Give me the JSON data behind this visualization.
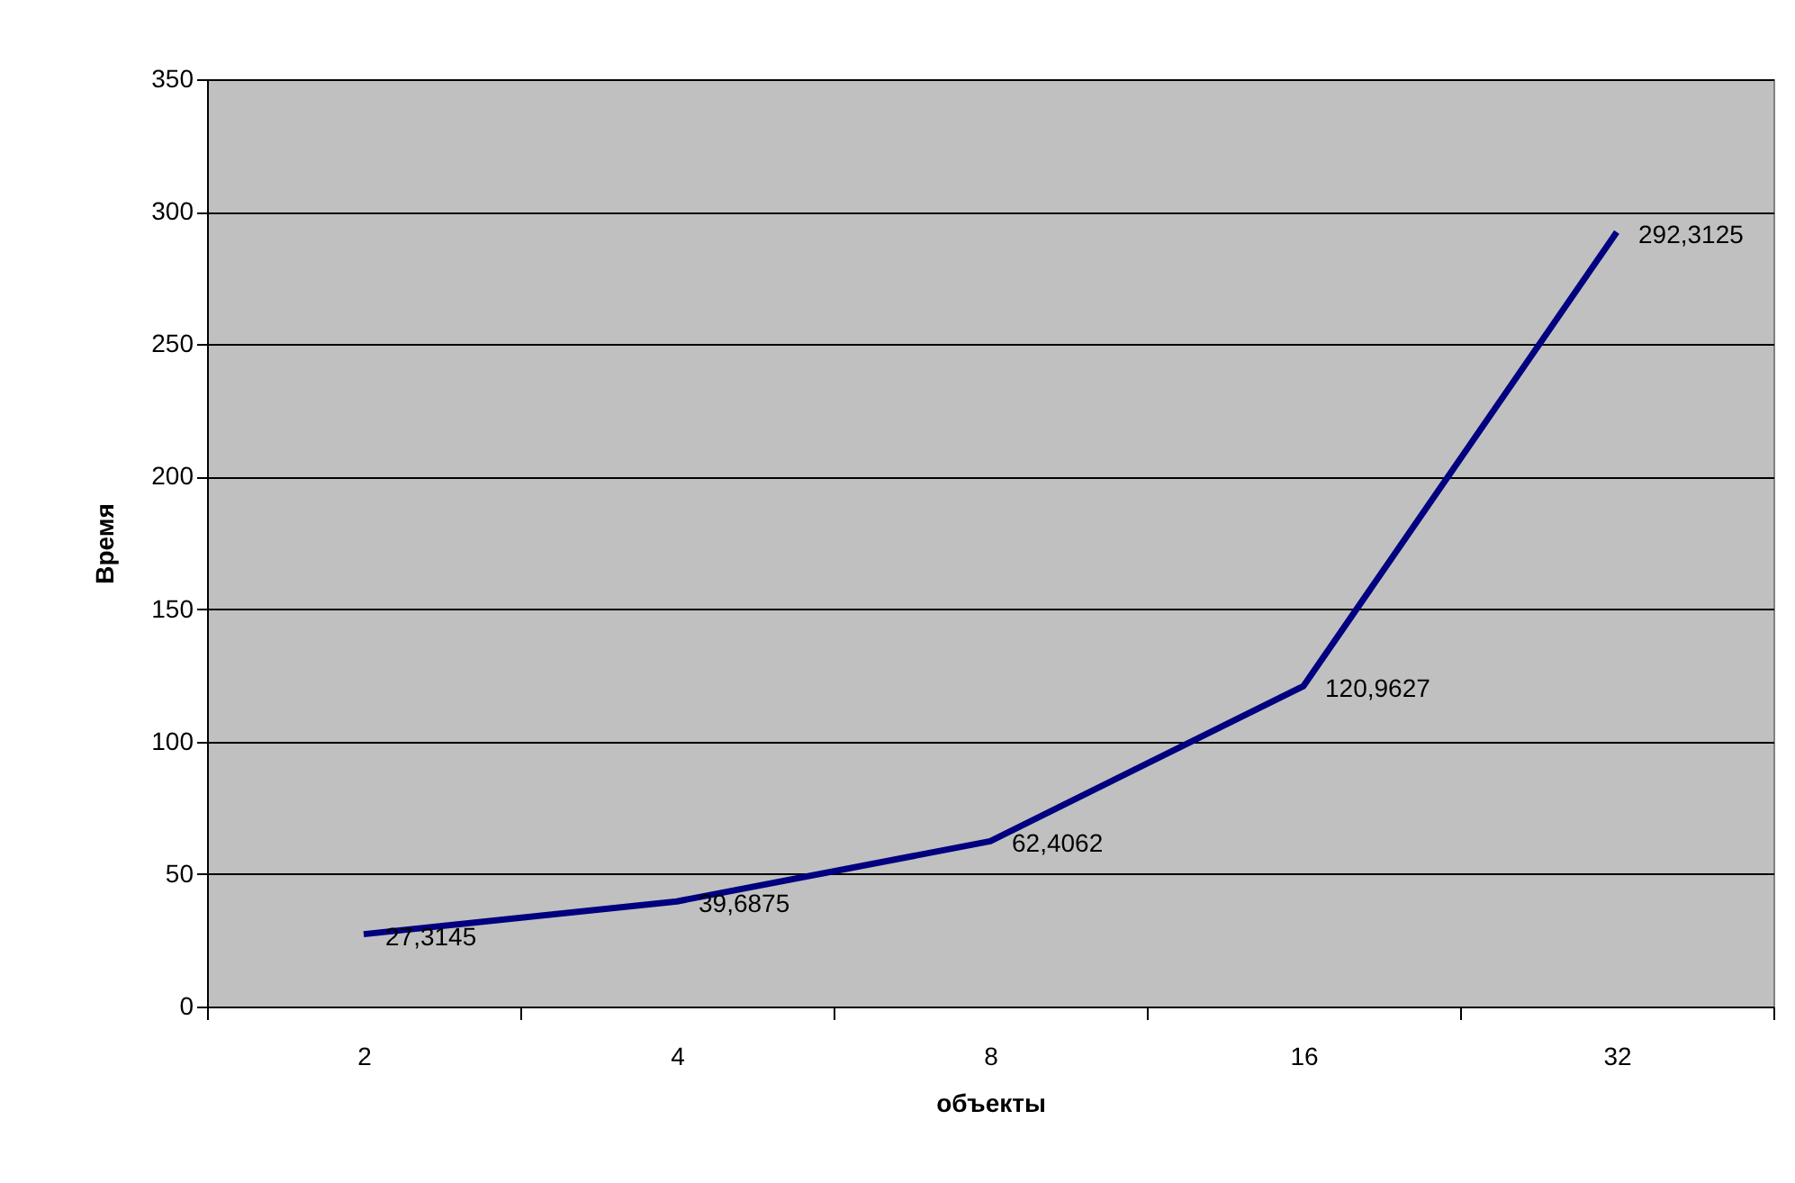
{
  "chart_data": {
    "type": "line",
    "xlabel": "объекты",
    "ylabel": "Время",
    "categories": [
      "2",
      "4",
      "8",
      "16",
      "32"
    ],
    "series": [
      {
        "color": "#000080",
        "values": [
          27.3145,
          39.6875,
          62.4062,
          120.9627,
          292.3125
        ],
        "value_labels": [
          "27,3145",
          "39,6875",
          "62,4062",
          "120,9627",
          "292,3125"
        ]
      }
    ],
    "ylim": [
      0,
      350
    ],
    "yticks": [
      0,
      50,
      100,
      150,
      200,
      250,
      300,
      350
    ],
    "grid": "y",
    "marker": "none",
    "line_style": "solid"
  }
}
